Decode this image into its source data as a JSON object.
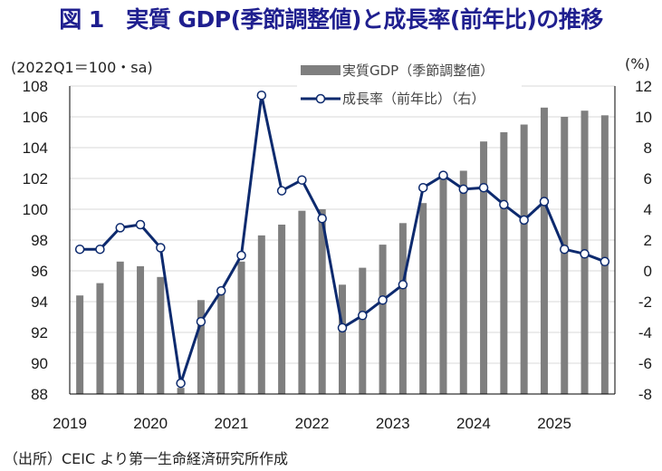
{
  "title": "図 1　実質 GDP(季節調整値)と成長率(前年比)の推移",
  "source_note": "（出所）CEIC より第一生命経済研究所作成",
  "chart_data": {
    "type": "bar+line",
    "title": "図 1　実質 GDP(季節調整値)と成長率(前年比)の推移",
    "left_axis_label": "(2022Q1＝100・sa)",
    "right_axis_label": "(%)",
    "ylim_left": [
      88,
      108
    ],
    "ylim_right": [
      -8,
      12
    ],
    "yticks_left": [
      "108",
      "106",
      "104",
      "102",
      "100",
      "98",
      "96",
      "94",
      "92",
      "90",
      "88"
    ],
    "yticks_right": [
      "12",
      "10",
      "8",
      "6",
      "4",
      "2",
      "0",
      "-2",
      "-4",
      "-6",
      "-8"
    ],
    "x_tick_labels": [
      "2019",
      "2020",
      "2021",
      "2022",
      "2023",
      "2024",
      "2025"
    ],
    "grid": true,
    "legend_placement": "top-center",
    "categories": [
      "2019Q1",
      "2019Q2",
      "2019Q3",
      "2019Q4",
      "2020Q1",
      "2020Q2",
      "2020Q3",
      "2020Q4",
      "2021Q1",
      "2021Q2",
      "2021Q3",
      "2021Q4",
      "2022Q1",
      "2022Q2",
      "2022Q3",
      "2022Q4",
      "2023Q1",
      "2023Q2",
      "2023Q3",
      "2023Q4",
      "2024Q1",
      "2024Q2",
      "2024Q3",
      "2024Q4",
      "2025Q1",
      "2025Q2",
      "2025Q3"
    ],
    "series": [
      {
        "name": "実質GDP（季節調整値）",
        "type": "bar",
        "axis": "left",
        "color": "#7f7f7f",
        "values": [
          94.4,
          95.2,
          96.6,
          96.3,
          95.6,
          88.4,
          94.1,
          94.9,
          96.6,
          98.3,
          99.0,
          99.9,
          100.0,
          95.1,
          96.2,
          97.7,
          99.1,
          100.4,
          102.0,
          102.5,
          104.4,
          105.0,
          105.5,
          106.6,
          106.0,
          106.4,
          106.1
        ]
      },
      {
        "name": "成長率（前年比）（右）",
        "type": "line",
        "axis": "right",
        "color": "#0d2a6e",
        "values": [
          1.4,
          1.4,
          2.8,
          3.0,
          1.5,
          -7.3,
          -3.3,
          -1.3,
          1.0,
          11.4,
          5.2,
          5.9,
          3.4,
          -3.7,
          -2.9,
          -1.9,
          -0.9,
          5.4,
          6.2,
          5.3,
          5.4,
          4.3,
          3.3,
          4.5,
          1.4,
          1.1,
          0.6
        ]
      }
    ],
    "negative_tick_color": "#ff0000"
  }
}
